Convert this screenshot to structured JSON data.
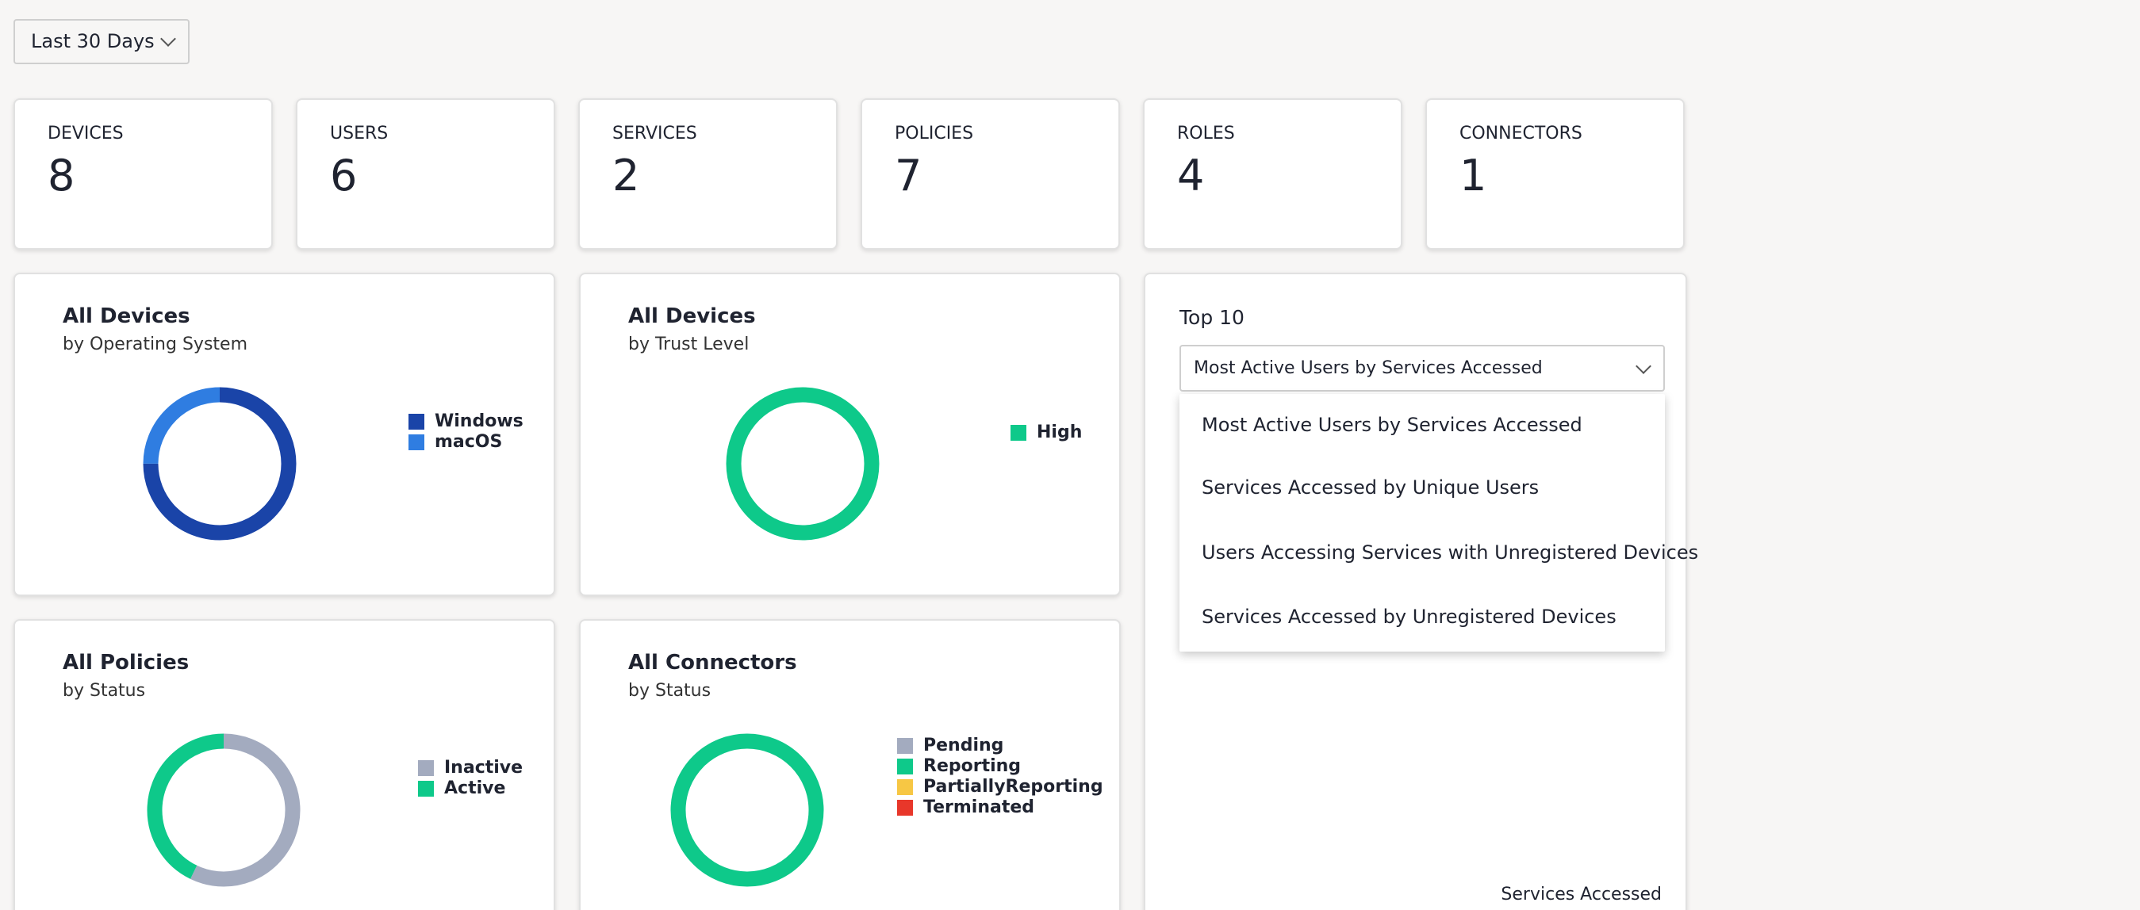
{
  "date_filter": "Last 30 Days",
  "stats": [
    {
      "label": "DEVICES",
      "value": 8
    },
    {
      "label": "USERS",
      "value": 6
    },
    {
      "label": "SERVICES",
      "value": 2
    },
    {
      "label": "POLICIES",
      "value": 7
    },
    {
      "label": "ROLES",
      "value": 4
    },
    {
      "label": "CONNECTORS",
      "value": 1
    }
  ],
  "charts": [
    {
      "type": "donut",
      "title": "All Devices",
      "subtitle": "by Operating System",
      "segments": [
        {
          "name": "Windows",
          "value": 6,
          "color": "#1a44a8"
        },
        {
          "name": "macOS",
          "value": 2,
          "color": "#2f7de1"
        }
      ]
    },
    {
      "type": "donut",
      "title": "All Devices",
      "subtitle": "by Trust Level",
      "segments": [
        {
          "name": "High",
          "value": 8,
          "color": "#0ec98a"
        }
      ]
    },
    {
      "type": "donut",
      "title": "All Policies",
      "subtitle": "by Status",
      "segments": [
        {
          "name": "Inactive",
          "value": 4,
          "color": "#a3abbf"
        },
        {
          "name": "Active",
          "value": 3,
          "color": "#0ec98a"
        }
      ]
    },
    {
      "type": "donut",
      "title": "All Connectors",
      "subtitle": "by Status",
      "segments": [
        {
          "name": "Pending",
          "value": 0,
          "color": "#a3abbf"
        },
        {
          "name": "Reporting",
          "value": 1,
          "color": "#0ec98a"
        },
        {
          "name": "PartiallyReporting",
          "value": 0,
          "color": "#f7c744"
        },
        {
          "name": "Terminated",
          "value": 0,
          "color": "#e8372a"
        }
      ]
    }
  ],
  "top10": {
    "title": "Top 10",
    "selected": "Most Active Users by Services Accessed",
    "options": [
      "Most Active Users by Services Accessed",
      "Services Accessed by Unique Users",
      "Users Accessing Services with Unregistered Devices",
      "Services Accessed by Unregistered Devices"
    ],
    "x_axis_label": "Services Accessed"
  }
}
